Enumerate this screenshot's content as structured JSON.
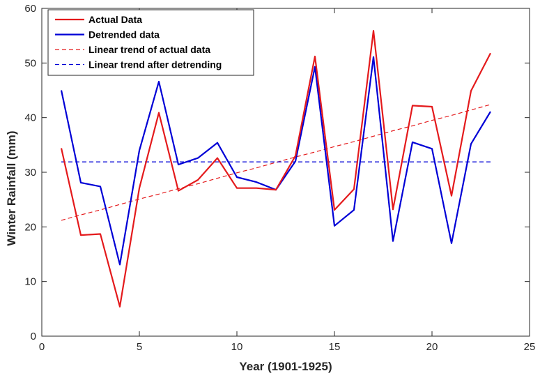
{
  "chart_data": {
    "type": "line",
    "xlabel": "Year (1901-1925)",
    "ylabel": "Winter Rainfall (mm)",
    "xlim": [
      0,
      25
    ],
    "ylim": [
      0,
      60
    ],
    "xticks": [
      0,
      5,
      10,
      15,
      20,
      25
    ],
    "yticks": [
      0,
      10,
      20,
      30,
      40,
      50,
      60
    ],
    "grid": false,
    "legend_position": "top-left",
    "x": [
      1,
      2,
      3,
      4,
      5,
      6,
      7,
      8,
      9,
      10,
      11,
      12,
      13,
      14,
      15,
      16,
      17,
      18,
      19,
      20,
      21,
      22,
      23
    ],
    "series": [
      {
        "name": "Actual Data",
        "color": "#e41a1c",
        "style": "solid",
        "values": [
          34.4,
          18.5,
          18.7,
          5.4,
          27.1,
          40.9,
          26.6,
          28.6,
          32.6,
          27.1,
          27.1,
          26.8,
          33.0,
          51.2,
          23.1,
          26.9,
          55.9,
          23.2,
          42.2,
          42.0,
          25.7,
          44.9,
          51.8
        ]
      },
      {
        "name": "Detrended data",
        "color": "#0000d6",
        "style": "solid",
        "values": [
          45.0,
          28.1,
          27.4,
          13.1,
          34.0,
          46.6,
          31.4,
          32.6,
          35.4,
          29.1,
          28.2,
          26.8,
          32.0,
          49.3,
          20.2,
          23.1,
          51.1,
          17.4,
          35.5,
          34.3,
          17.0,
          35.2,
          41.1
        ]
      },
      {
        "name": "Linear trend of actual data",
        "color": "#e41a1c",
        "style": "dashed",
        "values": [
          21.2,
          22.2,
          23.1,
          24.1,
          25.1,
          26.0,
          27.0,
          27.9,
          28.9,
          29.9,
          30.8,
          31.8,
          32.8,
          33.7,
          34.7,
          35.6,
          36.6,
          37.6,
          38.5,
          39.5,
          40.4,
          41.4,
          42.4
        ]
      },
      {
        "name": "Linear trend after detrending",
        "color": "#0000d6",
        "style": "dashed",
        "values": [
          31.9,
          31.9,
          31.9,
          31.9,
          31.9,
          31.9,
          31.9,
          31.9,
          31.9,
          31.9,
          31.9,
          31.9,
          31.9,
          31.9,
          31.9,
          31.9,
          31.9,
          31.9,
          31.9,
          31.9,
          31.9,
          31.9,
          31.9
        ]
      }
    ]
  }
}
